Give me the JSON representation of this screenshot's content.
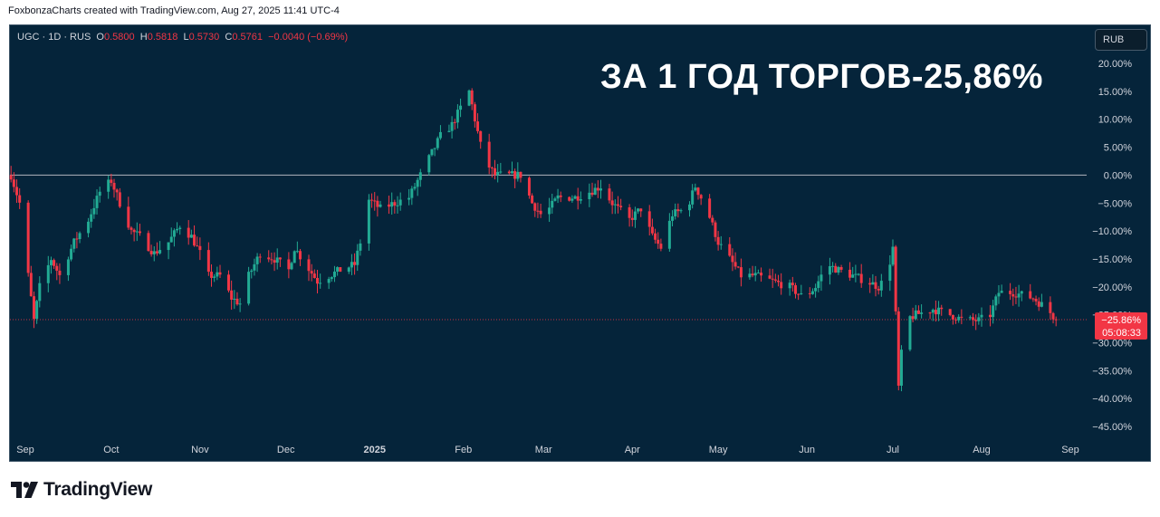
{
  "header": {
    "attribution": "FoxbonzaCharts created with TradingView.com, Aug 27, 2025 11:41 UTC-4"
  },
  "legend": {
    "symbol": "UGC · 1D · RUS",
    "o_label": "O",
    "o_value": "0.5800",
    "h_label": "H",
    "h_value": "0.5818",
    "l_label": "L",
    "l_value": "0.5730",
    "c_label": "C",
    "c_value": "0.5761",
    "change": "−0.0040 (−0.69%)"
  },
  "currency_button": "RUB",
  "headline": "ЗА 1 ГОД ТОРГОВ-25,86%",
  "price_tag": {
    "value": "−25.86%",
    "countdown": "05:08:33"
  },
  "footer": {
    "brand": "TradingView"
  },
  "colors": {
    "background": "#05243a",
    "up": "#22ab94",
    "down": "#f23645",
    "axis_text": "#d1d4dc",
    "zero_line": "#b2b5be"
  },
  "chart_data": {
    "type": "candlestick",
    "title": "",
    "xlabel": "",
    "ylabel": "",
    "ylim": [
      -47.5,
      22.5
    ],
    "yticks": [
      "20.00%",
      "15.00%",
      "10.00%",
      "5.00%",
      "0.00%",
      "−5.00%",
      "−10.00%",
      "−15.00%",
      "−20.00%",
      "−25.00%",
      "−30.00%",
      "−35.00%",
      "−40.00%",
      "−45.00%"
    ],
    "ytick_values": [
      20,
      15,
      10,
      5,
      0,
      -5,
      -10,
      -15,
      -20,
      -25,
      -30,
      -35,
      -40,
      -45
    ],
    "xticks": [
      {
        "label": "Sep",
        "date": "2024-09-01"
      },
      {
        "label": "Oct",
        "date": "2024-10-01"
      },
      {
        "label": "Nov",
        "date": "2024-11-01"
      },
      {
        "label": "Dec",
        "date": "2024-12-01"
      },
      {
        "label": "2025",
        "date": "2025-01-01"
      },
      {
        "label": "Feb",
        "date": "2025-02-01"
      },
      {
        "label": "Mar",
        "date": "2025-03-01"
      },
      {
        "label": "Apr",
        "date": "2025-04-01"
      },
      {
        "label": "May",
        "date": "2025-05-01"
      },
      {
        "label": "Jun",
        "date": "2025-06-01"
      },
      {
        "label": "Jul",
        "date": "2025-07-01"
      },
      {
        "label": "Aug",
        "date": "2025-08-01"
      },
      {
        "label": "Sep",
        "date": "2025-09-01"
      }
    ],
    "reference_line": 0,
    "last_value": -25.86,
    "path": [
      [
        "2024-08-27",
        0
      ],
      [
        "2024-08-30",
        -5
      ],
      [
        "2024-09-02",
        -18
      ],
      [
        "2024-09-04",
        -26
      ],
      [
        "2024-09-06",
        -20
      ],
      [
        "2024-09-10",
        -15
      ],
      [
        "2024-09-13",
        -18
      ],
      [
        "2024-09-18",
        -12
      ],
      [
        "2024-09-23",
        -8
      ],
      [
        "2024-09-27",
        -3
      ],
      [
        "2024-10-01",
        -1
      ],
      [
        "2024-10-04",
        -5
      ],
      [
        "2024-10-08",
        -10
      ],
      [
        "2024-10-11",
        -11
      ],
      [
        "2024-10-16",
        -14
      ],
      [
        "2024-10-21",
        -12
      ],
      [
        "2024-10-25",
        -9
      ],
      [
        "2024-10-29",
        -11
      ],
      [
        "2024-11-01",
        -14
      ],
      [
        "2024-11-04",
        -18
      ],
      [
        "2024-11-08",
        -18
      ],
      [
        "2024-11-12",
        -22
      ],
      [
        "2024-11-15",
        -23
      ],
      [
        "2024-11-18",
        -18
      ],
      [
        "2024-11-22",
        -14
      ],
      [
        "2024-11-27",
        -15
      ],
      [
        "2024-12-02",
        -17
      ],
      [
        "2024-12-04",
        -13
      ],
      [
        "2024-12-08",
        -16
      ],
      [
        "2024-12-12",
        -19
      ],
      [
        "2024-12-16",
        -18
      ],
      [
        "2024-12-20",
        -17
      ],
      [
        "2024-12-25",
        -16
      ],
      [
        "2024-12-27",
        -12
      ],
      [
        "2024-12-29",
        -4
      ],
      [
        "2025-01-03",
        -6
      ],
      [
        "2025-01-08",
        -5
      ],
      [
        "2025-01-13",
        -4
      ],
      [
        "2025-01-16",
        -1
      ],
      [
        "2025-01-20",
        3
      ],
      [
        "2025-01-24",
        7
      ],
      [
        "2025-01-28",
        9
      ],
      [
        "2025-01-31",
        12
      ],
      [
        "2025-02-03",
        15
      ],
      [
        "2025-02-05",
        10
      ],
      [
        "2025-02-08",
        3
      ],
      [
        "2025-02-12",
        0
      ],
      [
        "2025-02-17",
        0
      ],
      [
        "2025-02-21",
        0
      ],
      [
        "2025-02-25",
        -5
      ],
      [
        "2025-02-28",
        -7
      ],
      [
        "2025-03-03",
        -6
      ],
      [
        "2025-03-06",
        -4
      ],
      [
        "2025-03-12",
        -4
      ],
      [
        "2025-03-17",
        -3
      ],
      [
        "2025-03-21",
        -2
      ],
      [
        "2025-03-25",
        -5
      ],
      [
        "2025-03-31",
        -8
      ],
      [
        "2025-04-04",
        -6
      ],
      [
        "2025-04-08",
        -11
      ],
      [
        "2025-04-11",
        -13
      ],
      [
        "2025-04-15",
        -7
      ],
      [
        "2025-04-20",
        -6
      ],
      [
        "2025-04-23",
        -2
      ],
      [
        "2025-04-27",
        -6
      ],
      [
        "2025-05-01",
        -12
      ],
      [
        "2025-05-05",
        -15
      ],
      [
        "2025-05-09",
        -18
      ],
      [
        "2025-05-14",
        -18
      ],
      [
        "2025-05-20",
        -19
      ],
      [
        "2025-05-26",
        -20
      ],
      [
        "2025-05-31",
        -22
      ],
      [
        "2025-06-04",
        -20
      ],
      [
        "2025-06-08",
        -16
      ],
      [
        "2025-06-12",
        -17
      ],
      [
        "2025-06-17",
        -18
      ],
      [
        "2025-06-22",
        -19
      ],
      [
        "2025-06-26",
        -20
      ],
      [
        "2025-06-29",
        -18
      ],
      [
        "2025-07-01",
        -13
      ],
      [
        "2025-07-02",
        -25
      ],
      [
        "2025-07-03",
        -38
      ],
      [
        "2025-07-05",
        -26
      ],
      [
        "2025-07-09",
        -25
      ],
      [
        "2025-07-15",
        -24
      ],
      [
        "2025-07-21",
        -25
      ],
      [
        "2025-07-26",
        -26
      ],
      [
        "2025-07-31",
        -26
      ],
      [
        "2025-08-04",
        -25
      ],
      [
        "2025-08-07",
        -21
      ],
      [
        "2025-08-12",
        -21
      ],
      [
        "2025-08-19",
        -22
      ],
      [
        "2025-08-24",
        -24
      ],
      [
        "2025-08-27",
        -25.86
      ]
    ]
  }
}
